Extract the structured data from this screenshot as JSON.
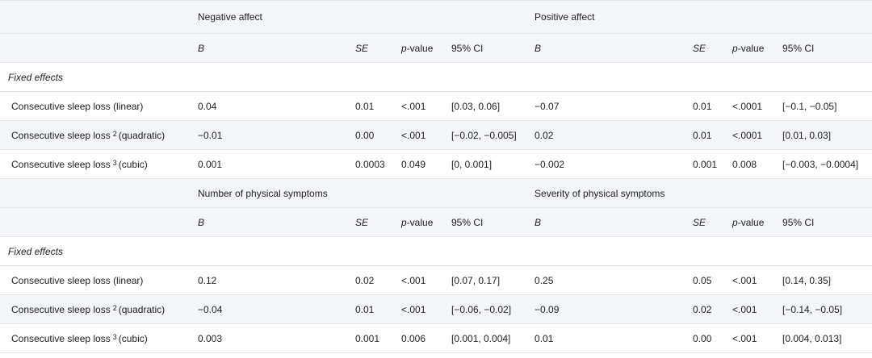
{
  "blocks": [
    {
      "group_left": "Negative affect",
      "group_right": "Positive affect",
      "col_headers": {
        "b": "B",
        "se": "SE",
        "p_prefix": "p",
        "p_suffix": "-value",
        "ci": "95% CI"
      },
      "section_label": "Fixed effects",
      "rows": [
        {
          "label_pre": "Consecutive sleep loss (linear)",
          "sup": "",
          "label_post": "",
          "l_b": "0.04",
          "l_se": "0.01",
          "l_p": "<.001",
          "l_ci": "[0.03, 0.06]",
          "r_b": "−0.07",
          "r_se": "0.01",
          "r_p": "<.0001",
          "r_ci": "[−0.1, −0.05]"
        },
        {
          "label_pre": "Consecutive sleep loss",
          "sup": "2",
          "label_post": "(quadratic)",
          "l_b": "−0.01",
          "l_se": "0.00",
          "l_p": "<.001",
          "l_ci": "[−0.02, −0.005]",
          "r_b": "0.02",
          "r_se": "0.01",
          "r_p": "<.0001",
          "r_ci": "[0.01, 0.03]"
        },
        {
          "label_pre": "Consecutive sleep loss",
          "sup": "3",
          "label_post": "(cubic)",
          "l_b": "0.001",
          "l_se": "0.0003",
          "l_p": "0.049",
          "l_ci": "[0, 0.001]",
          "r_b": "−0.002",
          "r_se": "0.001",
          "r_p": "0.008",
          "r_ci": "[−0.003, −0.0004]"
        }
      ]
    },
    {
      "group_left": "Number of physical symptoms",
      "group_right": "Severity of physical symptoms",
      "col_headers": {
        "b": "B",
        "se": "SE",
        "p_prefix": "p",
        "p_suffix": "-value",
        "ci": "95% CI"
      },
      "section_label": "Fixed effects",
      "rows": [
        {
          "label_pre": "Consecutive sleep loss (linear)",
          "sup": "",
          "label_post": "",
          "l_b": "0.12",
          "l_se": "0.02",
          "l_p": "<.001",
          "l_ci": "[0.07, 0.17]",
          "r_b": "0.25",
          "r_se": "0.05",
          "r_p": "<.001",
          "r_ci": "[0.14, 0.35]"
        },
        {
          "label_pre": "Consecutive sleep loss",
          "sup": "2",
          "label_post": "(quadratic)",
          "l_b": "−0.04",
          "l_se": "0.01",
          "l_p": "<.001",
          "l_ci": "[−0.06, −0.02]",
          "r_b": "−0.09",
          "r_se": "0.02",
          "r_p": "<.001",
          "r_ci": "[−0.14, −0.05]"
        },
        {
          "label_pre": "Consecutive sleep loss",
          "sup": "3",
          "label_post": "(cubic)",
          "l_b": "0.003",
          "l_se": "0.001",
          "l_p": "0.006",
          "l_ci": "[0.001, 0.004]",
          "r_b": "0.01",
          "r_se": "0.00",
          "r_p": "<.001",
          "r_ci": "[0.004, 0.013]"
        }
      ]
    }
  ]
}
